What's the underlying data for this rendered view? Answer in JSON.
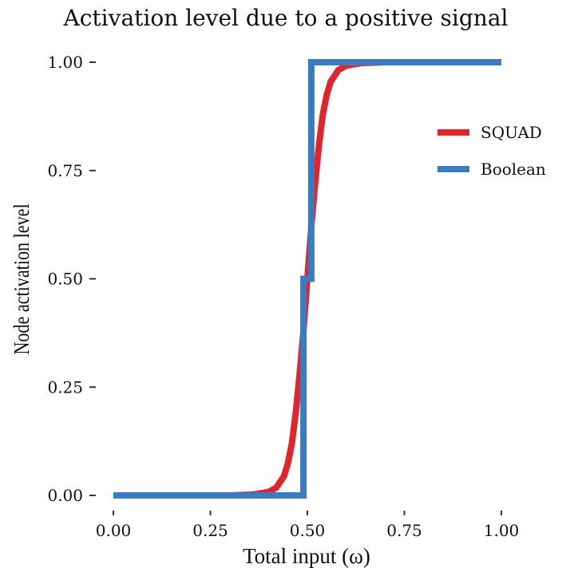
{
  "chart_data": {
    "type": "line",
    "title": "Activation level due to a positive signal",
    "xlabel": "Total input (ω)",
    "ylabel": "Node activation level",
    "xlim": [
      0,
      1
    ],
    "ylim": [
      0,
      1
    ],
    "x_ticks": [
      "0.00",
      "0.25",
      "0.50",
      "0.75",
      "1.00"
    ],
    "y_ticks": [
      "0.00",
      "0.25",
      "0.50",
      "0.75",
      "1.00"
    ],
    "grid": false,
    "legend_position": "right",
    "series": [
      {
        "name": "SQUAD",
        "color": "#e0262c",
        "x": [
          0.0,
          0.3,
          0.36,
          0.4,
          0.42,
          0.44,
          0.45,
          0.46,
          0.47,
          0.48,
          0.49,
          0.5,
          0.51,
          0.52,
          0.53,
          0.54,
          0.55,
          0.56,
          0.58,
          0.6,
          0.64,
          0.7,
          1.0
        ],
        "y": [
          0.0,
          0.0,
          0.002,
          0.008,
          0.018,
          0.045,
          0.075,
          0.12,
          0.19,
          0.28,
          0.38,
          0.5,
          0.62,
          0.72,
          0.81,
          0.88,
          0.925,
          0.955,
          0.982,
          0.992,
          0.998,
          1.0,
          1.0
        ]
      },
      {
        "name": "Boolean",
        "color": "#3a7cbf",
        "x": [
          0.0,
          0.49,
          0.49,
          0.51,
          0.51,
          1.0
        ],
        "y": [
          0.0,
          0.0,
          0.5,
          0.5,
          1.0,
          1.0
        ]
      }
    ]
  }
}
